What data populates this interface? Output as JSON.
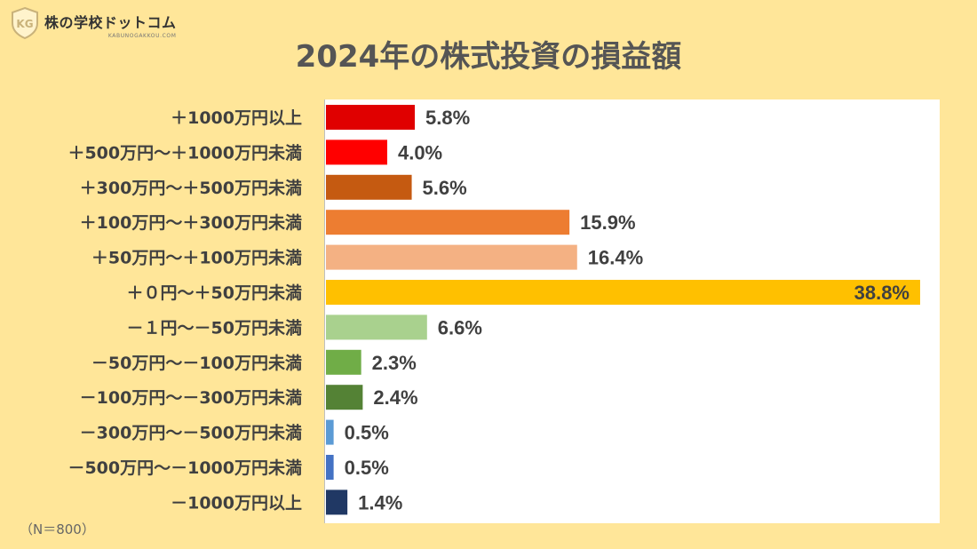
{
  "logo": {
    "name": "株の学校ドットコム",
    "sub": "KABUNOGAKKOU.COM",
    "mark": "KG"
  },
  "note": "（N＝800）",
  "colors": {
    "background": "#FFE699",
    "plot_background": "#FFFFFF",
    "label_text": "#404040"
  },
  "chart_data": {
    "type": "bar",
    "orientation": "horizontal",
    "title": "2024年の株式投資の損益額",
    "categories": [
      "＋1000万円以上",
      "＋500万円～＋1000万円未満",
      "＋300万円～＋500万円未満",
      "＋100万円～＋300万円未満",
      "＋50万円～＋100万円未満",
      "＋０円～＋50万円未満",
      "－１円～－50万円未満",
      "－50万円～－100万円未満",
      "－100万円～－300万円未満",
      "－300万円～－500万円未満",
      "－500万円～－1000万円未満",
      "－1000万円以上"
    ],
    "values": [
      5.8,
      4.0,
      5.6,
      15.9,
      16.4,
      38.8,
      6.6,
      2.3,
      2.4,
      0.5,
      0.5,
      1.4
    ],
    "data_labels": [
      "5.8%",
      "4.0%",
      "5.6%",
      "15.9%",
      "16.4%",
      "38.8%",
      "6.6%",
      "2.3%",
      "2.4%",
      "0.5%",
      "0.5%",
      "1.4%"
    ],
    "bar_colors": [
      "#E00000",
      "#FF0000",
      "#C55A11",
      "#ED7D31",
      "#F4B183",
      "#FFC000",
      "#A9D18E",
      "#70AD47",
      "#548235",
      "#5B9BD5",
      "#4472C4",
      "#203864"
    ],
    "xlabel": "",
    "ylabel": "",
    "xlim": [
      0,
      38.8
    ],
    "grid": false,
    "legend": "none"
  }
}
